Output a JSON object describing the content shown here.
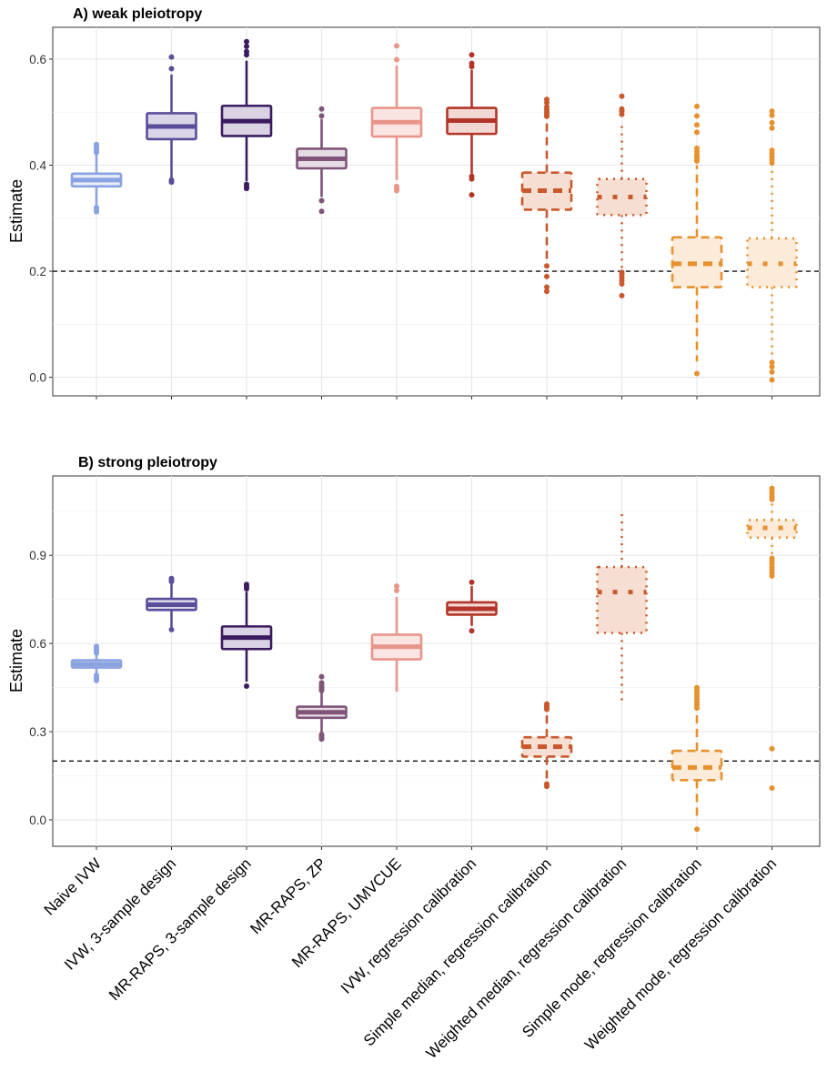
{
  "chart_data": [
    {
      "type": "box",
      "title": "A) weak pleiotropy",
      "ylabel": "Estimate",
      "xlabel": "",
      "ylim": [
        -0.035,
        0.66
      ],
      "yticks": [
        0.0,
        0.2,
        0.4,
        0.6
      ],
      "ytick_labels": [
        "0.0",
        "0.2",
        "0.4",
        "0.6"
      ],
      "reference_line": 0.2,
      "grid": true,
      "categories": [
        "Naive IVW",
        "IVW, 3-sample design",
        "MR-RAPS, 3-sample design",
        "MR-RAPS, ZP",
        "MR-RAPS, UMVCUE",
        "IVW, regression calibration",
        "Simple median, regression calibration",
        "Weighted median, regression calibration",
        "Simple mode, regression calibration",
        "Weighted mode, regression calibration"
      ],
      "boxes": [
        {
          "q1": 0.36,
          "median": 0.372,
          "q3": 0.384,
          "whisker_low": 0.323,
          "whisker_high": 0.421,
          "outliers": [
            0.312,
            0.316,
            0.32,
            0.424,
            0.428,
            0.432,
            0.436,
            0.439
          ]
        },
        {
          "q1": 0.449,
          "median": 0.473,
          "q3": 0.498,
          "whisker_low": 0.376,
          "whisker_high": 0.571,
          "outliers": [
            0.368,
            0.372,
            0.582,
            0.604
          ]
        },
        {
          "q1": 0.455,
          "median": 0.483,
          "q3": 0.512,
          "whisker_low": 0.37,
          "whisker_high": 0.597,
          "outliers": [
            0.356,
            0.36,
            0.364,
            0.608,
            0.614,
            0.624,
            0.633
          ]
        },
        {
          "q1": 0.394,
          "median": 0.412,
          "q3": 0.431,
          "whisker_low": 0.34,
          "whisker_high": 0.487,
          "outliers": [
            0.313,
            0.333,
            0.493,
            0.506
          ]
        },
        {
          "q1": 0.454,
          "median": 0.481,
          "q3": 0.508,
          "whisker_low": 0.372,
          "whisker_high": 0.588,
          "outliers": [
            0.352,
            0.356,
            0.36,
            0.599,
            0.625
          ]
        },
        {
          "q1": 0.459,
          "median": 0.484,
          "q3": 0.508,
          "whisker_low": 0.384,
          "whisker_high": 0.58,
          "outliers": [
            0.344,
            0.374,
            0.379,
            0.586,
            0.592,
            0.608
          ]
        },
        {
          "q1": 0.316,
          "median": 0.352,
          "q3": 0.386,
          "whisker_low": 0.22,
          "whisker_high": 0.487,
          "outliers": [
            0.162,
            0.17,
            0.19,
            0.21,
            0.492,
            0.496,
            0.5,
            0.505,
            0.51,
            0.518,
            0.524
          ]
        },
        {
          "q1": 0.306,
          "median": 0.34,
          "q3": 0.374,
          "whisker_low": 0.205,
          "whisker_high": 0.474,
          "outliers": [
            0.154,
            0.176,
            0.182,
            0.188,
            0.194,
            0.198,
            0.496,
            0.502,
            0.506,
            0.53
          ]
        },
        {
          "q1": 0.17,
          "median": 0.214,
          "q3": 0.264,
          "whisker_low": 0.03,
          "whisker_high": 0.4,
          "outliers": [
            0.007,
            0.408,
            0.412,
            0.416,
            0.42,
            0.426,
            0.432,
            0.462,
            0.476,
            0.493,
            0.511
          ]
        },
        {
          "q1": 0.17,
          "median": 0.214,
          "q3": 0.262,
          "whisker_low": 0.035,
          "whisker_high": 0.4,
          "outliers": [
            -0.005,
            0.01,
            0.02,
            0.028,
            0.404,
            0.41,
            0.416,
            0.422,
            0.428,
            0.47,
            0.48,
            0.494,
            0.502
          ]
        }
      ]
    },
    {
      "type": "box",
      "title": "B) strong pleiotropy",
      "ylabel": "Estimate",
      "xlabel": "",
      "ylim": [
        -0.09,
        1.17
      ],
      "yticks": [
        0.0,
        0.3,
        0.6,
        0.9
      ],
      "ytick_labels": [
        "0.0",
        "0.3",
        "0.6",
        "0.9"
      ],
      "reference_line": 0.2,
      "grid": true,
      "categories": [
        "Naive IVW",
        "IVW, 3-sample design",
        "MR-RAPS, 3-sample design",
        "MR-RAPS, ZP",
        "MR-RAPS, UMVCUE",
        "IVW, regression calibration",
        "Simple median, regression calibration",
        "Weighted median, regression calibration",
        "Simple mode, regression calibration",
        "Weighted mode, regression calibration"
      ],
      "boxes": [
        {
          "q1": 0.518,
          "median": 0.53,
          "q3": 0.543,
          "whisker_low": 0.498,
          "whisker_high": 0.562,
          "outliers": [
            0.474,
            0.478,
            0.482,
            0.487,
            0.492,
            0.568,
            0.574,
            0.58,
            0.586,
            0.59
          ]
        },
        {
          "q1": 0.714,
          "median": 0.732,
          "q3": 0.752,
          "whisker_low": 0.655,
          "whisker_high": 0.805,
          "outliers": [
            0.647,
            0.811,
            0.817,
            0.821
          ]
        },
        {
          "q1": 0.581,
          "median": 0.62,
          "q3": 0.658,
          "whisker_low": 0.47,
          "whisker_high": 0.776,
          "outliers": [
            0.455,
            0.786,
            0.794,
            0.801
          ]
        },
        {
          "q1": 0.347,
          "median": 0.366,
          "q3": 0.385,
          "whisker_low": 0.295,
          "whisker_high": 0.435,
          "outliers": [
            0.275,
            0.28,
            0.285,
            0.29,
            0.44,
            0.446,
            0.452,
            0.458,
            0.466,
            0.487
          ]
        },
        {
          "q1": 0.546,
          "median": 0.589,
          "q3": 0.63,
          "whisker_low": 0.436,
          "whisker_high": 0.758,
          "outliers": [
            0.78,
            0.795
          ]
        },
        {
          "q1": 0.698,
          "median": 0.718,
          "q3": 0.74,
          "whisker_low": 0.66,
          "whisker_high": 0.795,
          "outliers": [
            0.643,
            0.808
          ]
        },
        {
          "q1": 0.215,
          "median": 0.249,
          "q3": 0.281,
          "whisker_low": 0.13,
          "whisker_high": 0.37,
          "outliers": [
            0.114,
            0.122,
            0.376,
            0.382,
            0.388,
            0.394
          ]
        },
        {
          "q1": 0.636,
          "median": 0.775,
          "q3": 0.86,
          "whisker_low": 0.39,
          "whisker_high": 1.04,
          "outliers": []
        },
        {
          "q1": 0.135,
          "median": 0.178,
          "q3": 0.235,
          "whisker_low": 0.0,
          "whisker_high": 0.375,
          "outliers": [
            -0.032,
            0.38,
            0.39,
            0.4,
            0.41,
            0.42,
            0.43,
            0.44,
            0.45
          ]
        },
        {
          "q1": 0.96,
          "median": 0.993,
          "q3": 1.02,
          "whisker_low": 0.9,
          "whisker_high": 1.08,
          "outliers": [
            0.108,
            0.242,
            0.83,
            0.84,
            0.85,
            0.86,
            0.87,
            0.88,
            0.89,
            1.09,
            1.1,
            1.11,
            1.12,
            1.128
          ]
        }
      ]
    }
  ],
  "styles": [
    {
      "color": "#8aa2e0",
      "fill": "#e8edf9",
      "dash": "solid",
      "median_dash": "solid"
    },
    {
      "color": "#5a4e9a",
      "fill": "#dad6e8",
      "dash": "solid",
      "median_dash": "solid"
    },
    {
      "color": "#3b1b5f",
      "fill": "#d9d3e3",
      "dash": "solid",
      "median_dash": "solid"
    },
    {
      "color": "#7f5478",
      "fill": "#e6dde4",
      "dash": "solid",
      "median_dash": "solid"
    },
    {
      "color": "#e8958a",
      "fill": "#fbe5e2",
      "dash": "solid",
      "median_dash": "solid"
    },
    {
      "color": "#b33528",
      "fill": "#f2d8d4",
      "dash": "solid",
      "median_dash": "solid"
    },
    {
      "color": "#c9582c",
      "fill": "#f6ded3",
      "dash": "dashed",
      "median_dash": "dashed"
    },
    {
      "color": "#c9582c",
      "fill": "#f6ded3",
      "dash": "dotted",
      "median_dash": "dotted"
    },
    {
      "color": "#e6902e",
      "fill": "#fcebd9",
      "dash": "dashed",
      "median_dash": "dashed"
    },
    {
      "color": "#e6902e",
      "fill": "#fcebd9",
      "dash": "dotted",
      "median_dash": "dotted"
    }
  ]
}
